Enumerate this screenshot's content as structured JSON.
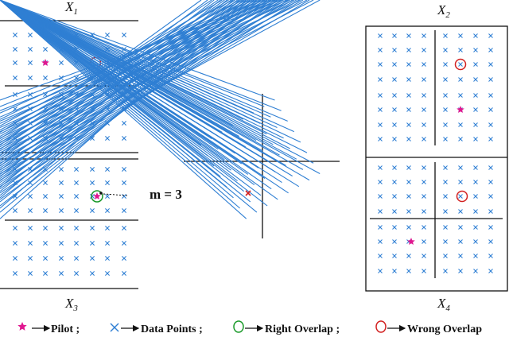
{
  "labels": {
    "x1": "X",
    "x1_sub": "1",
    "x2": "X",
    "x2_sub": "2",
    "x3": "X",
    "x3_sub": "3",
    "x4": "X",
    "x4_sub": "4",
    "m": "m = 3"
  },
  "legend": {
    "pilot": "Pilot ;",
    "data_points": "Data Points ;",
    "right_overlap": "Right Overlap ;",
    "wrong_overlap": "Wrong Overlap"
  },
  "colors": {
    "point": "#2f7fd3",
    "pilot": "#e0178f",
    "right": "#1a9a2a",
    "wrong": "#d22020",
    "line": "#111111"
  },
  "icons": {
    "pilot": "star-icon",
    "data_point": "cross-icon",
    "right_overlap": "green-circle-icon",
    "wrong_overlap": "red-circle-icon",
    "arrow": "arrow-right-icon"
  }
}
